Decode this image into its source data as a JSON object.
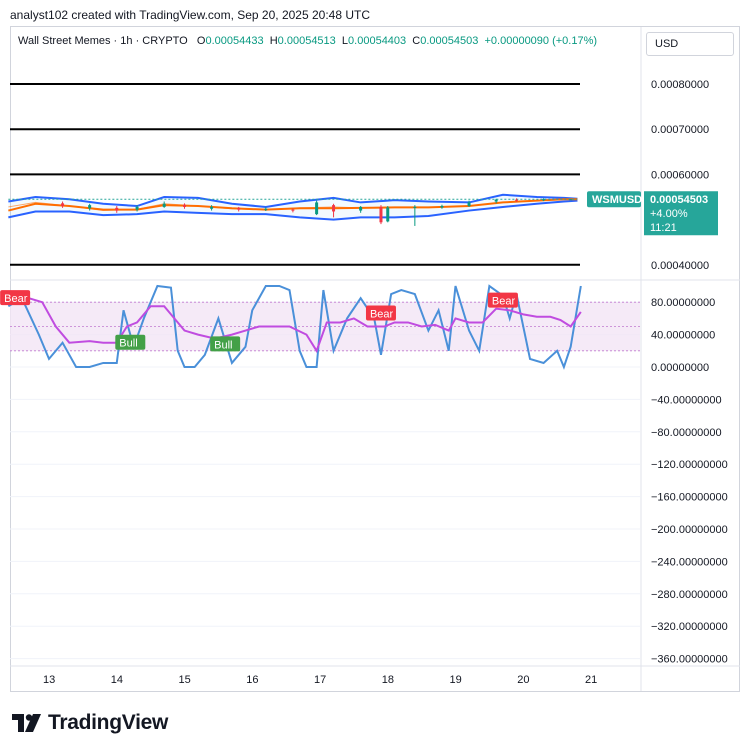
{
  "credit": "analyst102 created with TradingView.com, Sep 20, 2025 20:48 UTC",
  "legend": {
    "symbol": "Wall Street Memes · 1h · CRYPTO",
    "o_label": "O",
    "o": "0.00054433",
    "h_label": "H",
    "h": "0.00054513",
    "l_label": "L",
    "l": "0.00054403",
    "c_label": "C",
    "c": "0.00054503",
    "change": "+0.00000090 (+0.17%)"
  },
  "currency": "USD",
  "price_tag": {
    "ticker": "WSMUSD",
    "price": "0.00054503",
    "change": "+4.00%",
    "countdown": "11:21"
  },
  "brand": "TradingView",
  "colors": {
    "up": "#089981",
    "down": "#f23645",
    "bollinger": "#2962ff",
    "ema": "#ff6d00",
    "stoch_k": "#4a90d9",
    "stoch_d": "#c04ce0",
    "band_fill": "#f3e5f5",
    "tag": "#26a69a"
  },
  "chart_data": [
    {
      "type": "line",
      "pane": "price",
      "x_ticks": [
        "13",
        "14",
        "15",
        "16",
        "17",
        "18",
        "19",
        "20",
        "21"
      ],
      "y_ticks": [
        "0.00080000",
        "0.00070000",
        "0.00060000",
        "0.00040000"
      ],
      "ylim": [
        0.00036,
        0.00084
      ],
      "horizontal_lines": [
        0.0008,
        0.0007,
        0.0006,
        0.0004
      ],
      "series": [
        {
          "indicator": "bollinger_upper",
          "x": [
            12.4,
            12.8,
            13.3,
            13.8,
            14.3,
            14.7,
            15.2,
            15.7,
            16.2,
            16.7,
            17.2,
            17.6,
            18.1,
            18.6,
            19.2,
            19.7,
            20.2,
            20.6,
            20.8
          ],
          "y": [
            0.00054,
            0.00055,
            0.000545,
            0.000535,
            0.00053,
            0.00055,
            0.000548,
            0.000535,
            0.000528,
            0.00054,
            0.000548,
            0.000538,
            0.000543,
            0.00054,
            0.000538,
            0.000555,
            0.00055,
            0.000548,
            0.000546
          ]
        },
        {
          "indicator": "bollinger_middle",
          "x": [
            12.4,
            12.8,
            13.3,
            13.8,
            14.3,
            14.7,
            15.2,
            15.7,
            16.2,
            16.7,
            17.2,
            17.6,
            18.1,
            18.6,
            19.2,
            19.7,
            20.2,
            20.6,
            20.8
          ],
          "y": [
            0.000528,
            0.000538,
            0.00053,
            0.00052,
            0.000523,
            0.000535,
            0.00053,
            0.000524,
            0.000522,
            0.000526,
            0.000528,
            0.000526,
            0.000528,
            0.000527,
            0.00053,
            0.000538,
            0.000542,
            0.000545,
            0.000545
          ]
        },
        {
          "indicator": "bollinger_lower",
          "x": [
            12.4,
            12.8,
            13.3,
            13.8,
            14.3,
            14.7,
            15.2,
            15.7,
            16.2,
            16.7,
            17.2,
            17.6,
            18.1,
            18.6,
            19.2,
            19.7,
            20.2,
            20.6,
            20.8
          ],
          "y": [
            0.000505,
            0.000518,
            0.000518,
            0.00051,
            0.000512,
            0.000518,
            0.000515,
            0.000512,
            0.000512,
            0.000505,
            0.0005,
            0.000505,
            0.000505,
            0.000508,
            0.00052,
            0.000528,
            0.000535,
            0.00054,
            0.000542
          ]
        },
        {
          "indicator": "ema",
          "x": [
            12.4,
            12.8,
            13.3,
            13.8,
            14.3,
            14.7,
            15.2,
            15.7,
            16.2,
            16.7,
            17.2,
            17.6,
            18.1,
            18.6,
            19.2,
            19.7,
            20.2,
            20.6,
            20.8
          ],
          "y": [
            0.00052,
            0.000535,
            0.00053,
            0.000522,
            0.000522,
            0.000532,
            0.00053,
            0.000525,
            0.000522,
            0.000525,
            0.000525,
            0.000526,
            0.000527,
            0.000527,
            0.00053,
            0.000538,
            0.000542,
            0.000545,
            0.000545
          ]
        },
        {
          "indicator": "last_price",
          "x": [
            12.4,
            20.8
          ],
          "y": [
            0.00054503,
            0.00054503
          ]
        }
      ],
      "candles": [
        {
          "x": 13.2,
          "o": 0.000536,
          "c": 0.00053,
          "h": 0.00054,
          "l": 0.000526
        },
        {
          "x": 13.6,
          "o": 0.000525,
          "c": 0.000532,
          "h": 0.000535,
          "l": 0.00052
        },
        {
          "x": 14.0,
          "o": 0.000526,
          "c": 0.00052,
          "h": 0.00053,
          "l": 0.000515
        },
        {
          "x": 14.3,
          "o": 0.000522,
          "c": 0.000528,
          "h": 0.000532,
          "l": 0.000518
        },
        {
          "x": 14.7,
          "o": 0.000528,
          "c": 0.000535,
          "h": 0.00054,
          "l": 0.000526
        },
        {
          "x": 15.0,
          "o": 0.000533,
          "c": 0.000528,
          "h": 0.000536,
          "l": 0.000524
        },
        {
          "x": 15.4,
          "o": 0.000524,
          "c": 0.000528,
          "h": 0.000532,
          "l": 0.00052
        },
        {
          "x": 15.8,
          "o": 0.000526,
          "c": 0.000522,
          "h": 0.000528,
          "l": 0.000518
        },
        {
          "x": 16.2,
          "o": 0.000522,
          "c": 0.000524,
          "h": 0.000527,
          "l": 0.000519
        },
        {
          "x": 16.6,
          "o": 0.000522,
          "c": 0.00052,
          "h": 0.000525,
          "l": 0.000516
        },
        {
          "x": 16.95,
          "o": 0.000512,
          "c": 0.000538,
          "h": 0.000542,
          "l": 0.00051
        },
        {
          "x": 17.2,
          "o": 0.000532,
          "c": 0.000518,
          "h": 0.000535,
          "l": 0.000505
        },
        {
          "x": 17.6,
          "o": 0.00052,
          "c": 0.000528,
          "h": 0.00053,
          "l": 0.000515
        },
        {
          "x": 17.9,
          "o": 0.000528,
          "c": 0.000494,
          "h": 0.000532,
          "l": 0.00049
        },
        {
          "x": 18.0,
          "o": 0.000496,
          "c": 0.000527,
          "h": 0.00053,
          "l": 0.000494
        },
        {
          "x": 18.4,
          "o": 0.000526,
          "c": 0.000528,
          "h": 0.000532,
          "l": 0.000486
        },
        {
          "x": 18.8,
          "o": 0.000527,
          "c": 0.00053,
          "h": 0.000533,
          "l": 0.000524
        },
        {
          "x": 19.2,
          "o": 0.00053,
          "c": 0.000538,
          "h": 0.000542,
          "l": 0.000528
        },
        {
          "x": 19.6,
          "o": 0.00054,
          "c": 0.000544,
          "h": 0.000546,
          "l": 0.000536
        },
        {
          "x": 19.9,
          "o": 0.000544,
          "c": 0.000542,
          "h": 0.000547,
          "l": 0.000539
        },
        {
          "x": 20.3,
          "o": 0.000543,
          "c": 0.000545,
          "h": 0.000547,
          "l": 0.000541
        },
        {
          "x": 20.7,
          "o": 0.00054433,
          "c": 0.00054503,
          "h": 0.00054513,
          "l": 0.00054403
        }
      ]
    },
    {
      "type": "line",
      "pane": "oscillator",
      "y_ticks": [
        "80.00000000",
        "40.00000000",
        "0.00000000",
        "−40.00000000",
        "−80.00000000",
        "−120.00000000",
        "−160.00000000",
        "−200.00000000",
        "−240.00000000",
        "−280.00000000",
        "−320.00000000",
        "−360.00000000"
      ],
      "ylim": [
        -375,
        105
      ],
      "band": [
        20,
        80
      ],
      "guide_lines": [
        20,
        50,
        80
      ],
      "series": [
        {
          "indicator": "stoch_k",
          "x": [
            12.4,
            12.6,
            12.85,
            13.0,
            13.2,
            13.4,
            13.6,
            13.8,
            14.0,
            14.1,
            14.25,
            14.4,
            14.6,
            14.8,
            14.9,
            15.0,
            15.15,
            15.3,
            15.5,
            15.7,
            15.9,
            16.0,
            16.2,
            16.4,
            16.55,
            16.7,
            16.8,
            16.95,
            17.05,
            17.2,
            17.4,
            17.6,
            17.8,
            17.9,
            18.05,
            18.2,
            18.4,
            18.6,
            18.75,
            18.9,
            19.0,
            19.2,
            19.35,
            19.5,
            19.7,
            19.8,
            19.9,
            20.1,
            20.3,
            20.5,
            20.6,
            20.7,
            20.85
          ],
          "y": [
            75,
            85,
            40,
            10,
            30,
            0,
            0,
            5,
            5,
            70,
            25,
            60,
            100,
            98,
            20,
            0,
            0,
            15,
            60,
            5,
            25,
            70,
            100,
            100,
            95,
            20,
            0,
            0,
            95,
            20,
            60,
            85,
            60,
            15,
            90,
            95,
            90,
            45,
            70,
            20,
            100,
            45,
            20,
            100,
            88,
            60,
            90,
            10,
            5,
            20,
            0,
            25,
            100
          ]
        },
        {
          "indicator": "stoch_d",
          "x": [
            12.4,
            12.7,
            12.9,
            13.1,
            13.3,
            13.6,
            13.8,
            14.0,
            14.15,
            14.3,
            14.5,
            14.7,
            14.85,
            15.0,
            15.2,
            15.45,
            15.7,
            15.9,
            16.1,
            16.3,
            16.55,
            16.8,
            16.95,
            17.1,
            17.3,
            17.5,
            17.7,
            17.85,
            17.95,
            18.1,
            18.3,
            18.5,
            18.7,
            18.9,
            19.0,
            19.2,
            19.4,
            19.6,
            19.8,
            20.0,
            20.2,
            20.4,
            20.55,
            20.7,
            20.85
          ],
          "y": [
            82,
            85,
            80,
            50,
            30,
            32,
            30,
            30,
            50,
            55,
            75,
            75,
            60,
            45,
            40,
            35,
            40,
            45,
            50,
            50,
            50,
            40,
            20,
            55,
            55,
            60,
            50,
            50,
            50,
            55,
            55,
            50,
            52,
            45,
            60,
            55,
            55,
            72,
            70,
            65,
            62,
            62,
            58,
            50,
            68
          ]
        }
      ],
      "signals": [
        {
          "label": "Bear",
          "x": 12.5,
          "value": 85
        },
        {
          "label": "Bull",
          "x": 14.2,
          "value": 30
        },
        {
          "label": "Bull",
          "x": 15.6,
          "value": 28
        },
        {
          "label": "Bear",
          "x": 17.9,
          "value": 66
        },
        {
          "label": "Bear",
          "x": 19.7,
          "value": 82
        }
      ]
    }
  ]
}
